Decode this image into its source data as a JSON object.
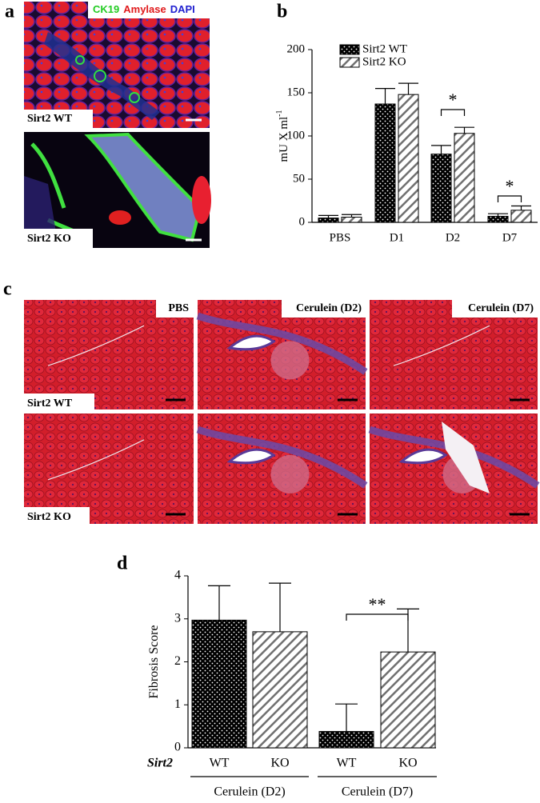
{
  "figure": {
    "panel_labels": [
      "a",
      "b",
      "c",
      "d"
    ],
    "panel_a": {
      "stain_labels": [
        {
          "text": "CK19",
          "color": "#22cc22"
        },
        {
          "text": "Amylase",
          "color": "#e0191b"
        },
        {
          "text": "DAPI",
          "color": "#2020d0"
        }
      ],
      "row_labels": [
        "Sirt2 WT",
        "Sirt2 KO"
      ]
    },
    "panel_c": {
      "column_labels": [
        "PBS",
        "Cerulein (D2)",
        "Cerulein (D7)"
      ],
      "row_labels": [
        "Sirt2 WT",
        "Sirt2 KO"
      ]
    }
  },
  "chart_data": [
    {
      "type": "bar",
      "y_label": "mU X ml",
      "y_label_sup": "-1",
      "categories": [
        "PBS",
        "D1",
        "D2",
        "D7"
      ],
      "series": [
        {
          "name": "Sirt2 WT",
          "color": "#000000",
          "fill_style": "dots",
          "values": [
            5,
            137,
            79,
            7
          ],
          "errors": [
            3,
            18,
            10,
            3
          ]
        },
        {
          "name": "Sirt2 KO",
          "color": "#707070",
          "fill_style": "hatch",
          "values": [
            6,
            148,
            103,
            14
          ],
          "errors": [
            3,
            13,
            7,
            5
          ]
        }
      ],
      "annotations": [
        "*",
        "*"
      ],
      "ylim": [
        0,
        200
      ],
      "yticks": [
        0,
        50,
        100,
        150,
        200
      ]
    },
    {
      "type": "bar",
      "y_label": "Fibrosis Score",
      "x_label": "Sirt2",
      "categories": [
        "WT",
        "KO",
        "WT",
        "KO"
      ],
      "groups": [
        "Cerulein (D2)",
        "Cerulein (D7)"
      ],
      "values": [
        2.97,
        2.7,
        0.38,
        2.23
      ],
      "errors": [
        0.8,
        1.13,
        0.64,
        1.0
      ],
      "bar_styles": [
        "dots",
        "hatch",
        "dots",
        "hatch"
      ],
      "colors": [
        "#000000",
        "#707070",
        "#000000",
        "#707070"
      ],
      "annotations": [
        "**"
      ],
      "ylim": [
        0,
        4
      ],
      "yticks": [
        0,
        1,
        2,
        3,
        4
      ]
    }
  ]
}
